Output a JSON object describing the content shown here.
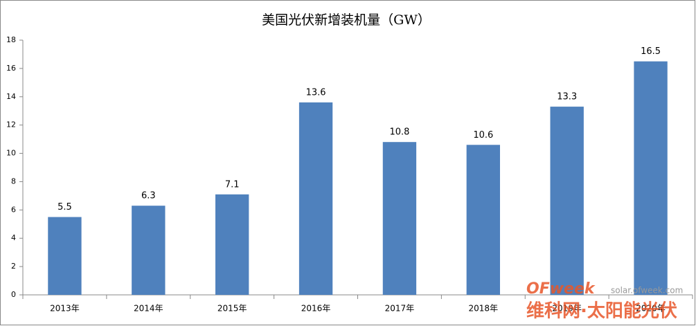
{
  "chart_data": {
    "type": "bar",
    "title": "美国光伏新增装机量（GW）",
    "categories": [
      "2013年",
      "2014年",
      "2015年",
      "2016年",
      "2017年",
      "2018年",
      "2019年",
      "2020年"
    ],
    "values": [
      5.5,
      6.3,
      7.1,
      13.6,
      10.8,
      10.6,
      13.3,
      16.5
    ],
    "color": "#4f81bd",
    "ylim": [
      0,
      18
    ],
    "yticks": [
      0,
      2,
      4,
      6,
      8,
      10,
      12,
      14,
      16,
      18
    ],
    "grid": false
  },
  "watermark": {
    "brand": "OFweek",
    "url": "solar.ofweek.com",
    "name": "维科网·太阳能光伏"
  }
}
